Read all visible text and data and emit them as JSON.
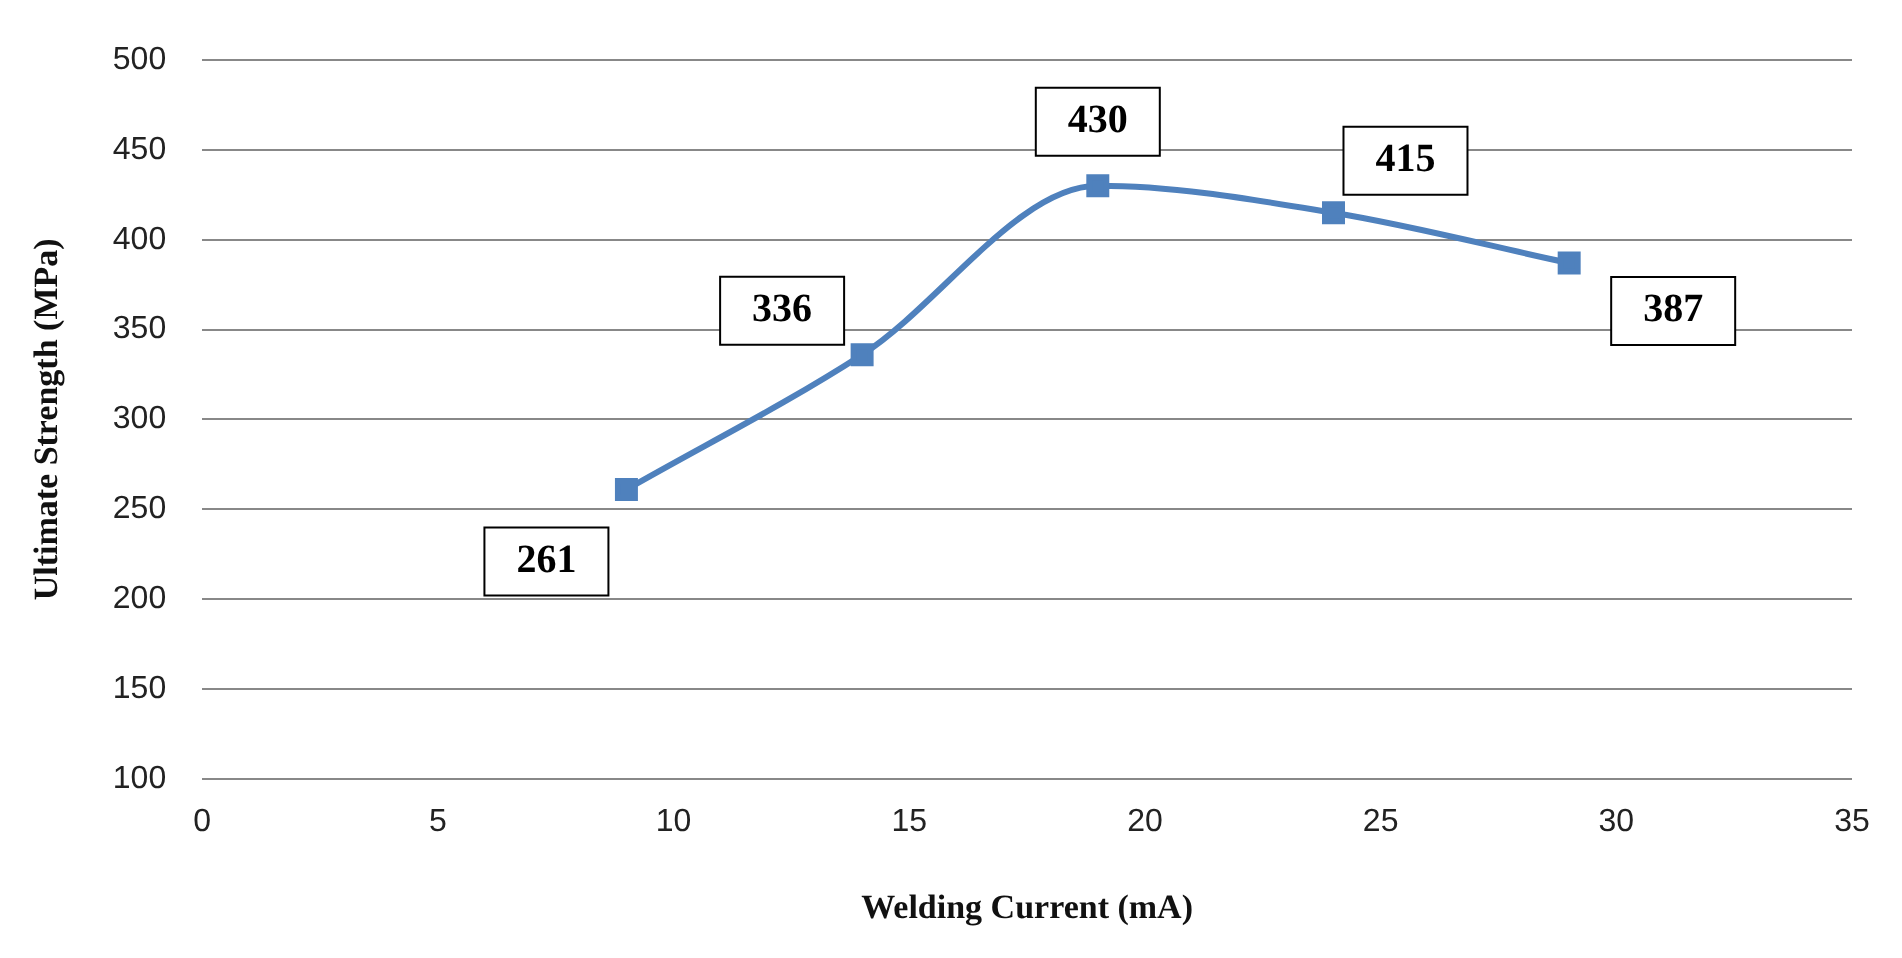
{
  "chart_data": {
    "type": "line",
    "xlabel": "Welding Current (mA)",
    "ylabel": "Ultimate Strength (MPa)",
    "x": [
      9,
      14,
      19,
      24,
      29
    ],
    "series": [
      {
        "color": "#4f81bd",
        "values": [
          261,
          336,
          430,
          415,
          387
        ]
      }
    ],
    "xlim": [
      0,
      35
    ],
    "xticks": [
      0,
      5,
      10,
      15,
      20,
      25,
      30,
      35
    ],
    "ylim": [
      100,
      500
    ],
    "yticks": [
      100,
      150,
      200,
      250,
      300,
      350,
      400,
      450,
      500
    ],
    "grid": "y",
    "legend": false,
    "marker": "square",
    "line_style": "solid",
    "data_labels": true
  }
}
